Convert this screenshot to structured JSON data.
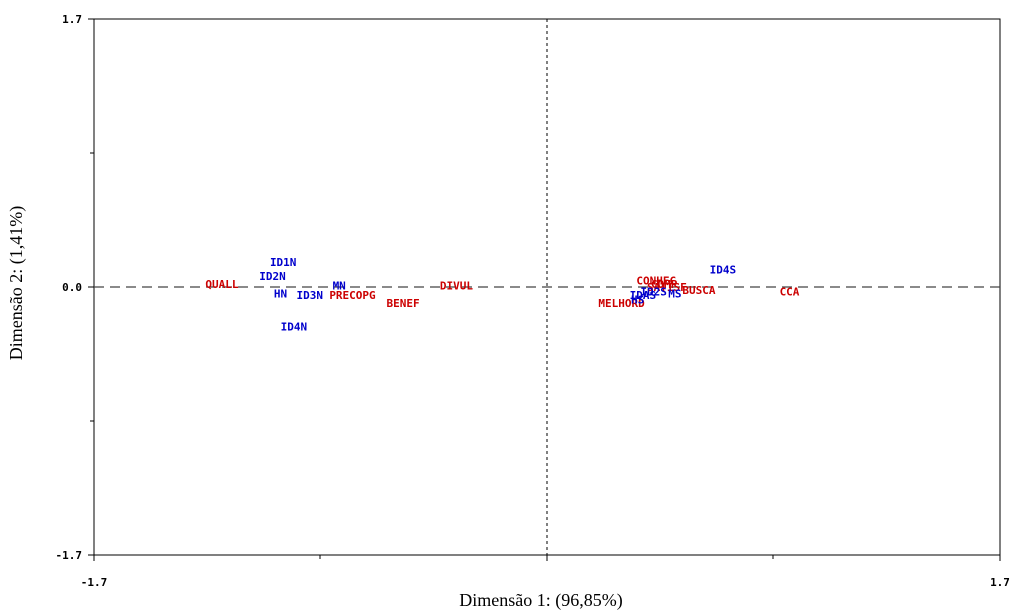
{
  "chart_data": {
    "type": "scatter",
    "title": "",
    "xlabel": "Dimensão 1: (96,85%)",
    "ylabel": "Dimensão 2: (1,41%)",
    "xlim": [
      -1.7,
      1.7
    ],
    "ylim": [
      -1.7,
      1.7
    ],
    "x_tick_labels": [
      "-1.7",
      "1.7"
    ],
    "y_tick_labels": [
      "1.7",
      "0.0",
      "-1.7"
    ],
    "reference_lines": {
      "x": 0,
      "y": 0,
      "style": "dashed"
    },
    "grid": false,
    "colors": {
      "red": "#cc0000",
      "blue": "#0000cc"
    },
    "points": [
      {
        "label": "QUALL",
        "x": -1.22,
        "y": 0.02,
        "color": "red"
      },
      {
        "label": "ID1N",
        "x": -0.99,
        "y": 0.16,
        "color": "blue"
      },
      {
        "label": "ID2N",
        "x": -1.03,
        "y": 0.07,
        "color": "blue"
      },
      {
        "label": "MN",
        "x": -0.78,
        "y": 0.01,
        "color": "blue"
      },
      {
        "label": "HN",
        "x": -1.0,
        "y": -0.04,
        "color": "blue"
      },
      {
        "label": "ID3N",
        "x": -0.89,
        "y": -0.05,
        "color": "blue"
      },
      {
        "label": "ID4N",
        "x": -0.95,
        "y": -0.25,
        "color": "blue"
      },
      {
        "label": "DIVUL",
        "x": -0.34,
        "y": 0.01,
        "color": "red"
      },
      {
        "label": "PRECOPG",
        "x": -0.73,
        "y": -0.05,
        "color": "red"
      },
      {
        "label": "BENEF",
        "x": -0.54,
        "y": -0.1,
        "color": "red"
      },
      {
        "label": "ID4S",
        "x": 0.66,
        "y": 0.11,
        "color": "blue"
      },
      {
        "label": "CCA",
        "x": 0.91,
        "y": -0.03,
        "color": "red"
      },
      {
        "label": "MELHORD",
        "x": 0.28,
        "y": -0.1,
        "color": "red"
      },
      {
        "label": "CONHEC",
        "x": 0.41,
        "y": 0.04,
        "color": "red"
      },
      {
        "label": "COMP",
        "x": 0.44,
        "y": 0.02,
        "color": "red"
      },
      {
        "label": "SATISF",
        "x": 0.45,
        "y": 0.0,
        "color": "red"
      },
      {
        "label": "BUSCA",
        "x": 0.57,
        "y": -0.02,
        "color": "red"
      },
      {
        "label": "IDAS",
        "x": 0.36,
        "y": -0.05,
        "color": "blue"
      },
      {
        "label": "MS",
        "x": 0.48,
        "y": -0.04,
        "color": "blue"
      },
      {
        "label": "HS",
        "x": 0.34,
        "y": -0.08,
        "color": "blue"
      },
      {
        "label": "ID2S",
        "x": 0.4,
        "y": -0.03,
        "color": "blue"
      }
    ]
  }
}
